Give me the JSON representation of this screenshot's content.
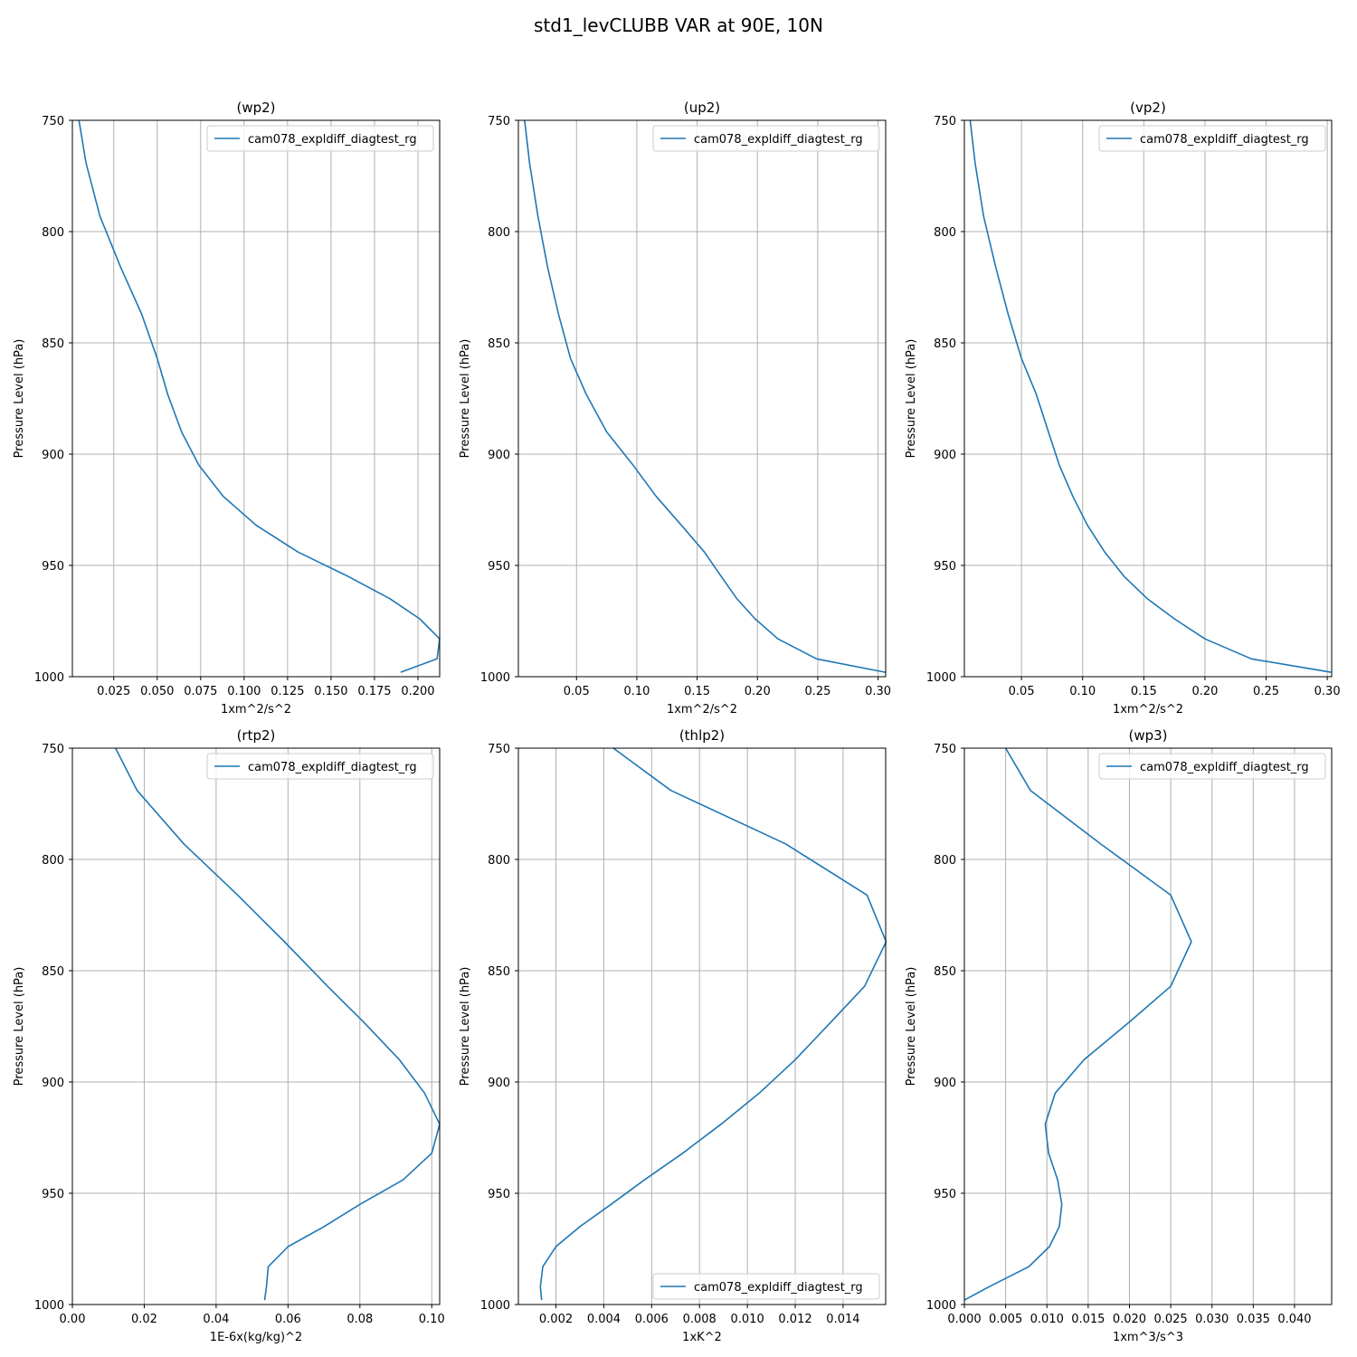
{
  "figure": {
    "title": "std1_levCLUBB VAR at 90E, 10N"
  },
  "chart_data": [
    {
      "type": "line",
      "title": "(wp2)",
      "xlabel": "1xm^2/s^2",
      "ylabel": "Pressure Level (hPa)",
      "xlim": [
        0.0012,
        0.2125
      ],
      "ylim": [
        1000,
        750
      ],
      "xticks": [
        0.025,
        0.05,
        0.075,
        0.1,
        0.125,
        0.15,
        0.175,
        0.2
      ],
      "xtick_labels": [
        "0.025",
        "0.050",
        "0.075",
        "0.100",
        "0.125",
        "0.150",
        "0.175",
        "0.200"
      ],
      "yticks": [
        750,
        800,
        850,
        900,
        950,
        1000
      ],
      "ytick_labels": [
        "750",
        "800",
        "850",
        "900",
        "950",
        "1000"
      ],
      "grid": true,
      "legend_position": "top-right",
      "series": [
        {
          "name": "cam078_expldiff_diagtest_rg",
          "x": [
            0.005,
            0.009,
            0.017,
            0.029,
            0.041,
            0.05,
            0.056,
            0.064,
            0.074,
            0.088,
            0.107,
            0.131,
            0.16,
            0.184,
            0.201,
            0.2125,
            0.211,
            0.19
          ],
          "y": [
            750,
            769,
            793,
            816,
            837,
            857,
            873,
            890,
            905,
            919,
            932,
            944,
            955,
            965,
            974,
            983,
            992,
            998
          ]
        }
      ]
    },
    {
      "type": "line",
      "title": "(up2)",
      "xlabel": "1xm^2/s^2",
      "ylabel": "Pressure Level (hPa)",
      "xlim": [
        0.0018,
        0.3063
      ],
      "ylim": [
        1000,
        750
      ],
      "xticks": [
        0.05,
        0.1,
        0.15,
        0.2,
        0.25,
        0.3
      ],
      "xtick_labels": [
        "0.05",
        "0.10",
        "0.15",
        "0.20",
        "0.25",
        "0.30"
      ],
      "yticks": [
        750,
        800,
        850,
        900,
        950,
        1000
      ],
      "ytick_labels": [
        "750",
        "800",
        "850",
        "900",
        "950",
        "1000"
      ],
      "grid": true,
      "legend_position": "top-right",
      "series": [
        {
          "name": "cam078_expldiff_diagtest_rg",
          "x": [
            0.007,
            0.011,
            0.018,
            0.026,
            0.035,
            0.045,
            0.058,
            0.075,
            0.097,
            0.116,
            0.137,
            0.156,
            0.17,
            0.183,
            0.198,
            0.217,
            0.249,
            0.306
          ],
          "y": [
            750,
            769,
            793,
            816,
            837,
            857,
            873,
            890,
            905,
            919,
            932,
            944,
            955,
            965,
            974,
            983,
            992,
            998
          ]
        }
      ]
    },
    {
      "type": "line",
      "title": "(vp2)",
      "xlabel": "1xm^2/s^2",
      "ylabel": "Pressure Level (hPa)",
      "xlim": [
        0.0033,
        0.3036
      ],
      "ylim": [
        1000,
        750
      ],
      "xticks": [
        0.05,
        0.1,
        0.15,
        0.2,
        0.25,
        0.3
      ],
      "xtick_labels": [
        "0.05",
        "0.10",
        "0.15",
        "0.20",
        "0.25",
        "0.30"
      ],
      "yticks": [
        750,
        800,
        850,
        900,
        950,
        1000
      ],
      "ytick_labels": [
        "750",
        "800",
        "850",
        "900",
        "950",
        "1000"
      ],
      "grid": true,
      "legend_position": "top-right",
      "series": [
        {
          "name": "cam078_expldiff_diagtest_rg",
          "x": [
            0.008,
            0.012,
            0.019,
            0.029,
            0.039,
            0.05,
            0.062,
            0.072,
            0.081,
            0.092,
            0.104,
            0.118,
            0.134,
            0.153,
            0.175,
            0.2,
            0.238,
            0.303
          ],
          "y": [
            750,
            769,
            793,
            816,
            837,
            857,
            873,
            890,
            905,
            919,
            932,
            944,
            955,
            965,
            974,
            983,
            992,
            998
          ]
        }
      ]
    },
    {
      "type": "line",
      "title": "(rtp2)",
      "xlabel": "1E-6x(kg/kg)^2",
      "ylabel": "Pressure Level (hPa)",
      "xlim": [
        0,
        0.1022
      ],
      "ylim": [
        1000,
        750
      ],
      "xticks": [
        0,
        0.02,
        0.04,
        0.06,
        0.08,
        0.1
      ],
      "xtick_labels": [
        "0.00",
        "0.02",
        "0.04",
        "0.06",
        "0.08",
        "0.10"
      ],
      "yticks": [
        750,
        800,
        850,
        900,
        950,
        1000
      ],
      "ytick_labels": [
        "750",
        "800",
        "850",
        "900",
        "950",
        "1000"
      ],
      "grid": true,
      "legend_position": "top-right",
      "series": [
        {
          "name": "cam078_expldiff_diagtest_rg",
          "x": [
            0.012,
            0.018,
            0.031,
            0.046,
            0.059,
            0.071,
            0.081,
            0.091,
            0.098,
            0.1022,
            0.1,
            0.092,
            0.08,
            0.07,
            0.06,
            0.0545,
            0.054,
            0.0535
          ],
          "y": [
            750,
            769,
            793,
            816,
            837,
            857,
            873,
            890,
            905,
            919,
            932,
            944,
            955,
            965,
            974,
            983,
            992,
            998
          ]
        }
      ]
    },
    {
      "type": "line",
      "title": "(thlp2)",
      "xlabel": "1xK^2",
      "ylabel": "Pressure Level (hPa)",
      "xlim": [
        0.00043,
        0.01578
      ],
      "ylim": [
        1000,
        750
      ],
      "xticks": [
        0.002,
        0.004,
        0.006,
        0.008,
        0.01,
        0.012,
        0.014
      ],
      "xtick_labels": [
        "0.002",
        "0.004",
        "0.006",
        "0.008",
        "0.010",
        "0.012",
        "0.014"
      ],
      "yticks": [
        750,
        800,
        850,
        900,
        950,
        1000
      ],
      "ytick_labels": [
        "750",
        "800",
        "850",
        "900",
        "950",
        "1000"
      ],
      "grid": true,
      "legend_position": "bottom-right",
      "series": [
        {
          "name": "cam078_expldiff_diagtest_rg",
          "x": [
            0.0044,
            0.0068,
            0.0116,
            0.015,
            0.0158,
            0.0149,
            0.0135,
            0.012,
            0.0105,
            0.0089,
            0.0073,
            0.0057,
            0.0043,
            0.003,
            0.002,
            0.00145,
            0.00135,
            0.0014
          ],
          "y": [
            750,
            769,
            793,
            816,
            837,
            857,
            873,
            890,
            905,
            919,
            932,
            944,
            955,
            965,
            974,
            983,
            992,
            998
          ]
        }
      ]
    },
    {
      "type": "line",
      "title": "(wp3)",
      "xlabel": "1xm^3/s^3",
      "ylabel": "Pressure Level (hPa)",
      "xlim": [
        0,
        0.0445
      ],
      "ylim": [
        1000,
        750
      ],
      "xticks": [
        0,
        0.005,
        0.01,
        0.015,
        0.02,
        0.025,
        0.03,
        0.035,
        0.04
      ],
      "xtick_labels": [
        "0.000",
        "0.005",
        "0.010",
        "0.015",
        "0.020",
        "0.025",
        "0.030",
        "0.035",
        "0.040"
      ],
      "yticks": [
        750,
        800,
        850,
        900,
        950,
        1000
      ],
      "ytick_labels": [
        "750",
        "800",
        "850",
        "900",
        "950",
        "1000"
      ],
      "grid": true,
      "legend_position": "top-right",
      "series": [
        {
          "name": "cam078_expldiff_diagtest_rg",
          "x": [
            0.005,
            0.008,
            0.0165,
            0.025,
            0.0275,
            0.025,
            0.02,
            0.0145,
            0.011,
            0.0098,
            0.0102,
            0.0113,
            0.0118,
            0.0115,
            0.0103,
            0.0078,
            0.003,
            0.0
          ],
          "y": [
            750,
            769,
            793,
            816,
            837,
            857,
            873,
            890,
            905,
            919,
            932,
            944,
            955,
            965,
            974,
            983,
            992,
            998
          ]
        }
      ]
    }
  ]
}
